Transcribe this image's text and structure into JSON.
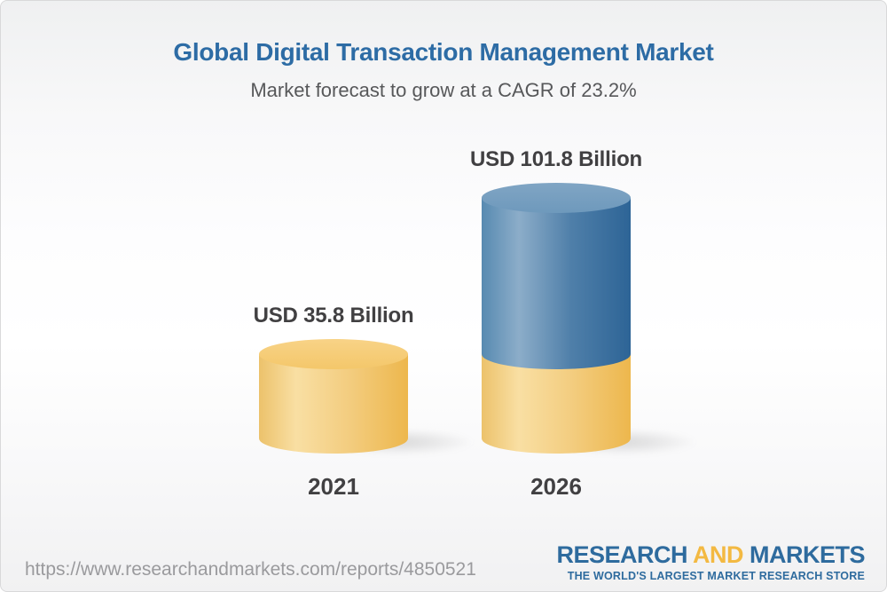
{
  "header": {
    "title": "Global Digital Transaction Management Market",
    "subtitle": "Market forecast to grow at a CAGR of 23.2%"
  },
  "chart_data": {
    "type": "bar",
    "subtype": "3d-cylinder-stacked",
    "title": "Global Digital Transaction Management Market",
    "subtitle": "Market forecast to grow at a CAGR of 23.2%",
    "cagr_pct": 23.2,
    "unit": "USD Billion",
    "categories": [
      "2021",
      "2026"
    ],
    "values": [
      35.8,
      101.8
    ],
    "bars": [
      {
        "year": "2021",
        "value": 35.8,
        "label": "USD 35.8 Billion",
        "segments": [
          {
            "id": "base",
            "value": 35.8,
            "color": "#f2c468"
          }
        ]
      },
      {
        "year": "2026",
        "value": 101.8,
        "label": "USD 101.8 Billion",
        "segments": [
          {
            "id": "base",
            "value": 35.8,
            "color": "#f2c468"
          },
          {
            "id": "growth",
            "value": 66.0,
            "color": "#44749e"
          }
        ]
      }
    ],
    "legend_position": "none",
    "grid": false
  },
  "footer": {
    "url": "https://www.researchandmarkets.com/reports/4850521",
    "logo": {
      "word1": "RESEARCH",
      "word2": "AND",
      "word3": "MARKETS",
      "tagline": "THE WORLD'S LARGEST MARKET RESEARCH STORE"
    }
  },
  "colors": {
    "title_blue": "#2d6ca5",
    "subtitle_gray": "#57585a",
    "value_label_gray": "#414042",
    "bar_yellow": "#f2c468",
    "bar_blue": "#44749e",
    "logo_blue": "#2e6b9e",
    "logo_gold": "#f3b942",
    "url_gray": "#9a9a9d"
  }
}
